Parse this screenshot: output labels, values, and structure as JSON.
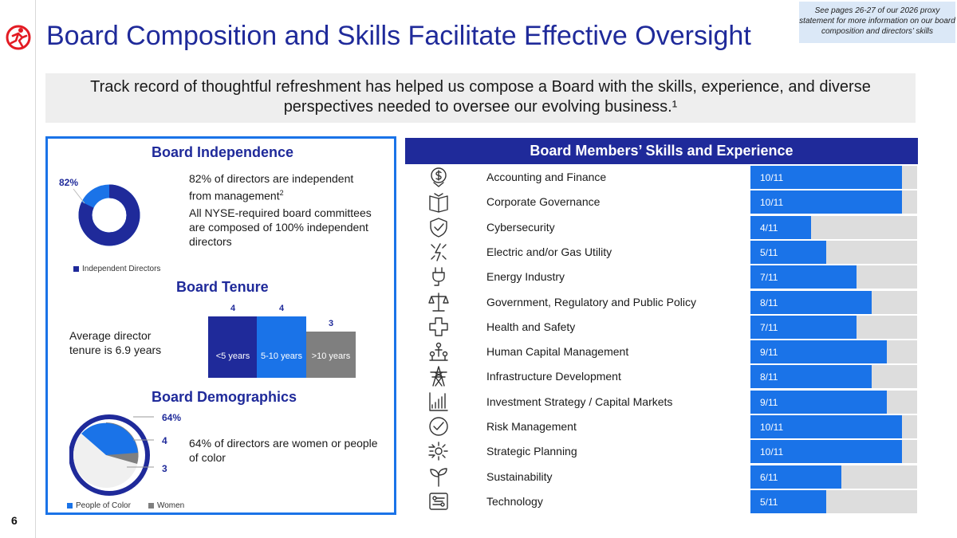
{
  "header": {
    "title": "Board Composition and Skills Facilitate Effective Oversight",
    "note": "See pages 26-27 of our 2026 proxy statement for more information on our board composition and directors’ skills",
    "page_number": "6"
  },
  "subtitle": "Track record of thoughtful refreshment has helped us compose a Board with the skills, experience, and diverse perspectives needed to oversee our evolving business.¹",
  "independence": {
    "heading": "Board Independence",
    "percent_label": "82%",
    "independent_fraction": 0.82,
    "text1": "82% of directors are independent from management",
    "text1_sup": "2",
    "text2": "All NYSE-required board committees are composed of 100% independent directors",
    "legend": "Independent Directors"
  },
  "tenure": {
    "heading": "Board Tenure",
    "text": "Average director tenure is 6.9 years",
    "bars": [
      {
        "label": "<5 years",
        "value": "4",
        "count": 4,
        "color": "#1f2a9a"
      },
      {
        "label": "5-10 years",
        "value": "4",
        "count": 4,
        "color": "#1a73e8"
      },
      {
        "label": ">10 years",
        "value": "3",
        "count": 3,
        "color": "#7f7f7f"
      }
    ]
  },
  "demographics": {
    "heading": "Board Demographics",
    "percent_label": "64%",
    "text": "64% of directors are women or people of color",
    "people_of_color": "4",
    "women": "3",
    "legend_poc": "People of Color",
    "legend_women": "Women"
  },
  "skills": {
    "heading": "Board Members’ Skills and Experience",
    "total": 11,
    "items": [
      {
        "icon": "dollar-icon",
        "label": "Accounting and Finance",
        "count_text": "10/11",
        "count": 10
      },
      {
        "icon": "book-icon",
        "label": "Corporate Governance",
        "count_text": "10/11",
        "count": 10
      },
      {
        "icon": "shield-check-icon",
        "label": "Cybersecurity",
        "count_text": "4/11",
        "count": 4
      },
      {
        "icon": "lightning-icon",
        "label": "Electric and/or Gas Utility",
        "count_text": "5/11",
        "count": 5
      },
      {
        "icon": "plug-icon",
        "label": "Energy Industry",
        "count_text": "7/11",
        "count": 7
      },
      {
        "icon": "scales-icon",
        "label": "Government, Regulatory and Public Policy",
        "count_text": "8/11",
        "count": 8
      },
      {
        "icon": "medical-cross-icon",
        "label": "Health and Safety",
        "count_text": "7/11",
        "count": 7
      },
      {
        "icon": "people-network-icon",
        "label": "Human Capital Management",
        "count_text": "9/11",
        "count": 9
      },
      {
        "icon": "transmission-tower-icon",
        "label": "Infrastructure Development",
        "count_text": "8/11",
        "count": 8
      },
      {
        "icon": "bar-chart-icon",
        "label": "Investment Strategy / Capital Markets",
        "count_text": "9/11",
        "count": 9
      },
      {
        "icon": "check-circle-icon",
        "label": "Risk Management",
        "count_text": "10/11",
        "count": 10
      },
      {
        "icon": "gear-arrows-icon",
        "label": "Strategic Planning",
        "count_text": "10/11",
        "count": 10
      },
      {
        "icon": "sprout-icon",
        "label": "Sustainability",
        "count_text": "6/11",
        "count": 6
      },
      {
        "icon": "circuit-icon",
        "label": "Technology",
        "count_text": "5/11",
        "count": 5
      }
    ]
  },
  "colors": {
    "navy": "#1f2a9a",
    "blue": "#1a73e8",
    "gray": "#7f7f7f",
    "light_gray": "#dddddd",
    "accent_red": "#e31b23"
  }
}
